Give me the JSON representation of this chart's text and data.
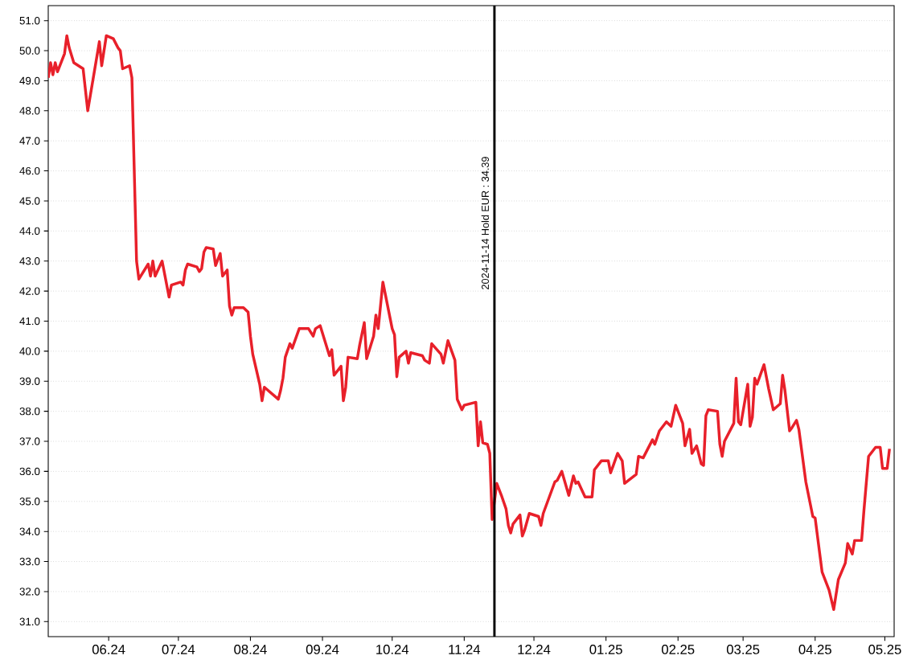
{
  "chart_data": {
    "type": "line",
    "xlim": [
      "2024-05-06",
      "2025-05-05"
    ],
    "ylim": [
      30.5,
      51.5
    ],
    "xticks": [
      {
        "value": "2024-06-01",
        "label": "06.24"
      },
      {
        "value": "2024-07-01",
        "label": "07.24"
      },
      {
        "value": "2024-08-01",
        "label": "08.24"
      },
      {
        "value": "2024-09-01",
        "label": "09.24"
      },
      {
        "value": "2024-10-01",
        "label": "10.24"
      },
      {
        "value": "2024-11-01",
        "label": "11.24"
      },
      {
        "value": "2024-12-01",
        "label": "12.24"
      },
      {
        "value": "2025-01-01",
        "label": "01.25"
      },
      {
        "value": "2025-02-01",
        "label": "02.25"
      },
      {
        "value": "2025-03-01",
        "label": "03.25"
      },
      {
        "value": "2025-04-01",
        "label": "04.25"
      },
      {
        "value": "2025-05-01",
        "label": "05.25"
      }
    ],
    "yticks": [
      {
        "value": 31,
        "label": "31.0"
      },
      {
        "value": 32,
        "label": "32.0"
      },
      {
        "value": 33,
        "label": "33.0"
      },
      {
        "value": 34,
        "label": "34.0"
      },
      {
        "value": 35,
        "label": "35.0"
      },
      {
        "value": 36,
        "label": "36.0"
      },
      {
        "value": 37,
        "label": "37.0"
      },
      {
        "value": 38,
        "label": "38.0"
      },
      {
        "value": 39,
        "label": "39.0"
      },
      {
        "value": 40,
        "label": "40.0"
      },
      {
        "value": 41,
        "label": "41.0"
      },
      {
        "value": 42,
        "label": "42.0"
      },
      {
        "value": 43,
        "label": "43.0"
      },
      {
        "value": 44,
        "label": "44.0"
      },
      {
        "value": 45,
        "label": "45.0"
      },
      {
        "value": 46,
        "label": "46.0"
      },
      {
        "value": 47,
        "label": "47.0"
      },
      {
        "value": 48,
        "label": "48.0"
      },
      {
        "value": 49,
        "label": "49.0"
      },
      {
        "value": 50,
        "label": "50.0"
      },
      {
        "value": 51,
        "label": "51.0"
      }
    ],
    "grid": "y",
    "line_style": "solid",
    "ref_lines": [
      {
        "axis": "x",
        "value": "2024-11-14",
        "label": "2024-11-14 Hold EUR : 34.39",
        "color": "#000000"
      }
    ],
    "series": [
      {
        "color": "#e8202a",
        "x": [
          "2024-05-06",
          "2024-05-07",
          "2024-05-08",
          "2024-05-09",
          "2024-05-10",
          "2024-05-13",
          "2024-05-14",
          "2024-05-15",
          "2024-05-17",
          "2024-05-21",
          "2024-05-23",
          "2024-05-28",
          "2024-05-29",
          "2024-05-31",
          "2024-06-03",
          "2024-06-05",
          "2024-06-06",
          "2024-06-07",
          "2024-06-10",
          "2024-06-11",
          "2024-06-13",
          "2024-06-14",
          "2024-06-18",
          "2024-06-19",
          "2024-06-20",
          "2024-06-21",
          "2024-06-24",
          "2024-06-27",
          "2024-06-28",
          "2024-07-02",
          "2024-07-03",
          "2024-07-04",
          "2024-07-05",
          "2024-07-09",
          "2024-07-10",
          "2024-07-11",
          "2024-07-12",
          "2024-07-13",
          "2024-07-16",
          "2024-07-17",
          "2024-07-19",
          "2024-07-20",
          "2024-07-22",
          "2024-07-23",
          "2024-07-24",
          "2024-07-25",
          "2024-07-29",
          "2024-07-31",
          "2024-08-01",
          "2024-08-02",
          "2024-08-05",
          "2024-08-06",
          "2024-08-07",
          "2024-08-13",
          "2024-08-14",
          "2024-08-15",
          "2024-08-16",
          "2024-08-18",
          "2024-08-19",
          "2024-08-22",
          "2024-08-26",
          "2024-08-28",
          "2024-08-29",
          "2024-08-31",
          "2024-09-04",
          "2024-09-05",
          "2024-09-06",
          "2024-09-09",
          "2024-09-10",
          "2024-09-11",
          "2024-09-12",
          "2024-09-16",
          "2024-09-17",
          "2024-09-19",
          "2024-09-20",
          "2024-09-23",
          "2024-09-24",
          "2024-09-25",
          "2024-09-27",
          "2024-10-01",
          "2024-10-02",
          "2024-10-03",
          "2024-10-04",
          "2024-10-07",
          "2024-10-08",
          "2024-10-09",
          "2024-10-14",
          "2024-10-15",
          "2024-10-17",
          "2024-10-18",
          "2024-10-22",
          "2024-10-23",
          "2024-10-25",
          "2024-10-28",
          "2024-10-29",
          "2024-10-31",
          "2024-11-01",
          "2024-11-06",
          "2024-11-07",
          "2024-11-08",
          "2024-11-09",
          "2024-11-11",
          "2024-11-12",
          "2024-11-13",
          "2024-11-15",
          "2024-11-17",
          "2024-11-19",
          "2024-11-20",
          "2024-11-21",
          "2024-11-22",
          "2024-11-25",
          "2024-11-26",
          "2024-11-27",
          "2024-11-29",
          "2024-12-03",
          "2024-12-04",
          "2024-12-05",
          "2024-12-10",
          "2024-12-11",
          "2024-12-13",
          "2024-12-16",
          "2024-12-18",
          "2024-12-19",
          "2024-12-20",
          "2024-12-23",
          "2024-12-26",
          "2024-12-27",
          "2024-12-30",
          "2025-01-02",
          "2025-01-03",
          "2025-01-06",
          "2025-01-08",
          "2025-01-09",
          "2025-01-14",
          "2025-01-15",
          "2025-01-17",
          "2025-01-21",
          "2025-01-22",
          "2025-01-24",
          "2025-01-27",
          "2025-01-29",
          "2025-01-31",
          "2025-02-03",
          "2025-02-04",
          "2025-02-06",
          "2025-02-07",
          "2025-02-09",
          "2025-02-11",
          "2025-02-12",
          "2025-02-13",
          "2025-02-14",
          "2025-02-18",
          "2025-02-19",
          "2025-02-20",
          "2025-02-21",
          "2025-02-25",
          "2025-02-26",
          "2025-02-27",
          "2025-02-28",
          "2025-03-03",
          "2025-03-04",
          "2025-03-05",
          "2025-03-06",
          "2025-03-07",
          "2025-03-10",
          "2025-03-12",
          "2025-03-14",
          "2025-03-17",
          "2025-03-18",
          "2025-03-19",
          "2025-03-21",
          "2025-03-22",
          "2025-03-24",
          "2025-03-25",
          "2025-03-28",
          "2025-03-31",
          "2025-04-01",
          "2025-04-04",
          "2025-04-07",
          "2025-04-09",
          "2025-04-11",
          "2025-04-14",
          "2025-04-15",
          "2025-04-17",
          "2025-04-18",
          "2025-04-21",
          "2025-04-22",
          "2025-04-24",
          "2025-04-27",
          "2025-04-29",
          "2025-04-30",
          "2025-05-02",
          "2025-05-03"
        ],
        "values": [
          49.1,
          49.6,
          49.2,
          49.6,
          49.3,
          49.9,
          50.5,
          50.1,
          49.6,
          49.4,
          48.0,
          50.3,
          49.5,
          50.5,
          50.4,
          50.1,
          50.0,
          49.4,
          49.5,
          49.1,
          43.0,
          42.4,
          42.9,
          42.5,
          43.0,
          42.5,
          43.0,
          41.8,
          42.2,
          42.3,
          42.2,
          42.7,
          42.9,
          42.8,
          42.65,
          42.75,
          43.3,
          43.45,
          43.4,
          42.85,
          43.25,
          42.5,
          42.7,
          41.5,
          41.2,
          41.45,
          41.45,
          41.3,
          40.5,
          39.9,
          38.9,
          38.35,
          38.8,
          38.4,
          38.7,
          39.1,
          39.8,
          40.25,
          40.1,
          40.75,
          40.75,
          40.5,
          40.75,
          40.85,
          39.85,
          40.05,
          39.2,
          39.5,
          38.35,
          38.8,
          39.8,
          39.75,
          40.2,
          40.95,
          39.75,
          40.5,
          41.2,
          40.75,
          42.3,
          40.75,
          40.55,
          39.15,
          39.8,
          40.0,
          39.6,
          39.95,
          39.85,
          39.7,
          39.6,
          40.25,
          39.9,
          39.6,
          40.35,
          39.7,
          38.4,
          38.05,
          38.2,
          38.3,
          36.85,
          37.65,
          36.95,
          36.9,
          36.6,
          34.4,
          35.6,
          35.2,
          34.75,
          34.2,
          33.95,
          34.25,
          34.55,
          33.85,
          34.05,
          34.6,
          34.5,
          34.2,
          34.6,
          35.65,
          35.7,
          36.0,
          35.2,
          35.85,
          35.6,
          35.65,
          35.15,
          35.15,
          36.05,
          36.35,
          36.35,
          35.95,
          36.6,
          36.35,
          35.6,
          35.9,
          36.5,
          36.45,
          37.05,
          36.9,
          37.35,
          37.65,
          37.5,
          38.2,
          37.6,
          36.85,
          37.4,
          36.6,
          36.85,
          36.25,
          36.2,
          37.85,
          38.05,
          38.0,
          36.9,
          36.5,
          37.0,
          37.6,
          39.1,
          37.65,
          37.55,
          38.9,
          37.5,
          37.8,
          39.1,
          38.9,
          39.55,
          38.75,
          38.05,
          38.25,
          39.2,
          38.7,
          37.35,
          37.45,
          37.7,
          37.4,
          35.65,
          34.5,
          34.45,
          32.65,
          32.05,
          31.4,
          32.4,
          32.95,
          33.6,
          33.25,
          33.7,
          33.7,
          34.7,
          36.5,
          36.8,
          36.8,
          36.1,
          36.1,
          36.75
        ]
      }
    ]
  }
}
